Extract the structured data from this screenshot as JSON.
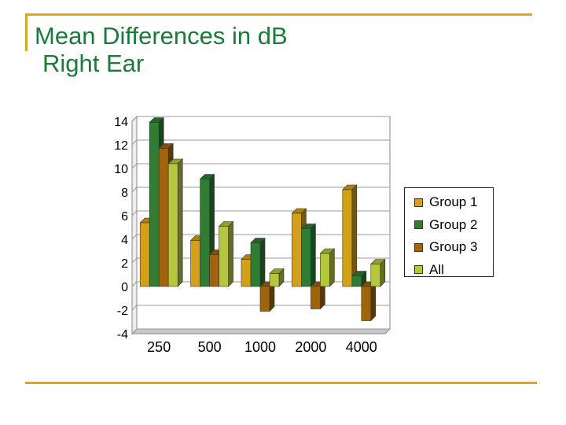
{
  "title": {
    "line1": "Mean Differences in dB",
    "line2": "Right Ear"
  },
  "colors": {
    "accent_rule": "#d4aa1e",
    "title": "#1b7a3a"
  },
  "chart_data": {
    "type": "bar",
    "title": "Mean Differences in dB Right Ear",
    "xlabel": "",
    "ylabel": "",
    "categories": [
      "250",
      "500",
      "1000",
      "2000",
      "4000"
    ],
    "ylim": [
      -4,
      14
    ],
    "yticks": [
      "14",
      "12",
      "10",
      "8",
      "6",
      "4",
      "2",
      "0",
      "-2",
      "-4"
    ],
    "ytick_values": [
      14,
      12,
      10,
      8,
      6,
      4,
      2,
      0,
      -2,
      -4
    ],
    "grid": true,
    "legend_position": "right",
    "series": [
      {
        "name": "Group 1",
        "color": "#d4a017",
        "values": [
          5.4,
          3.9,
          2.3,
          6.2,
          8.2
        ]
      },
      {
        "name": "Group 2",
        "color": "#2e7d32",
        "values": [
          13.9,
          9.1,
          3.7,
          4.9,
          0.9
        ]
      },
      {
        "name": "Group 3",
        "color": "#a0650a",
        "values": [
          11.7,
          2.7,
          -2.1,
          -1.9,
          -2.9
        ]
      },
      {
        "name": "All",
        "color": "#b5c73a",
        "values": [
          10.4,
          5.1,
          1.1,
          2.8,
          1.9
        ]
      }
    ]
  }
}
